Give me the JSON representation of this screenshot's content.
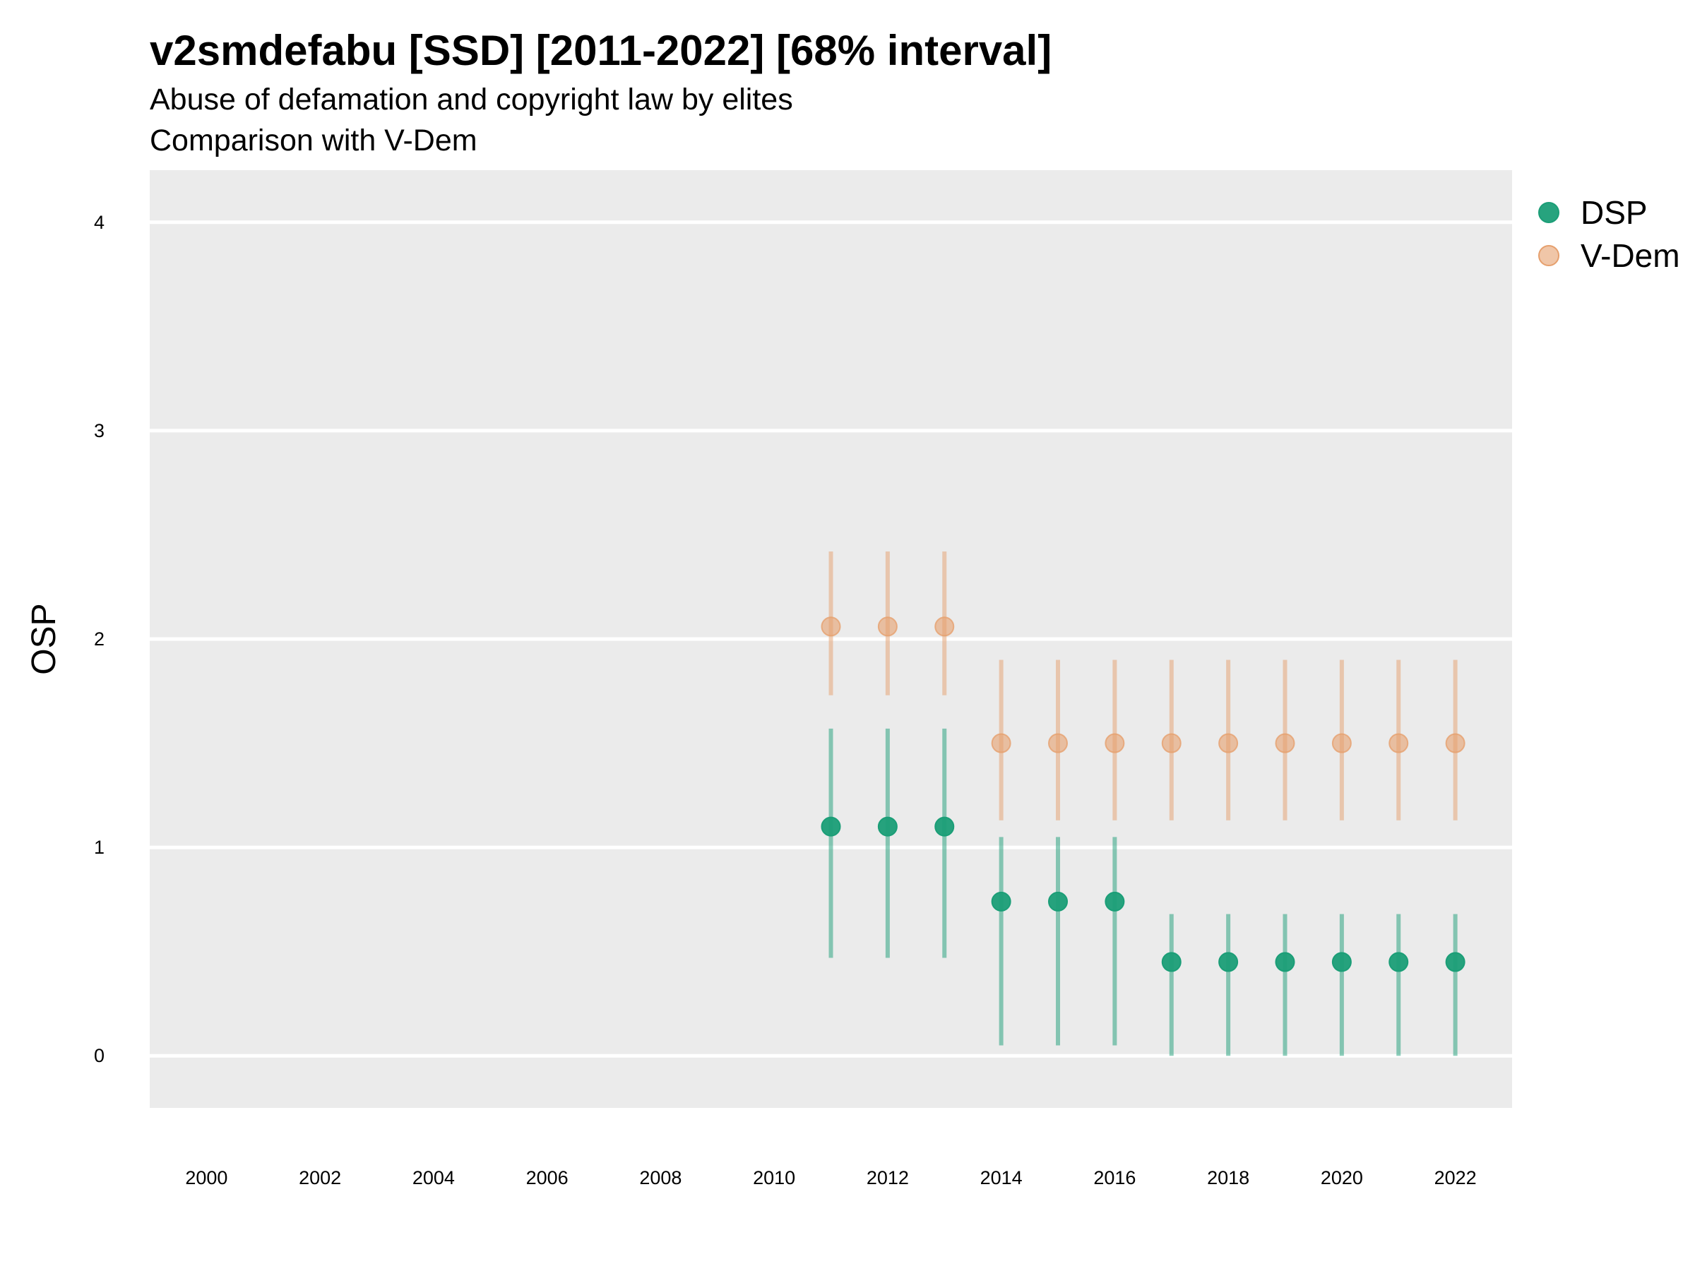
{
  "chart_data": {
    "type": "scatter",
    "title": "v2smdefabu [SSD] [2011-2022] [68% interval]",
    "subtitle_lines": [
      "Abuse of defamation and copyright law by elites",
      "Comparison with V-Dem"
    ],
    "xlabel": "",
    "ylabel": "OSP",
    "xlim": [
      1999.0,
      2023.0
    ],
    "ylim": [
      -0.25,
      4.25
    ],
    "x_ticks": [
      2000,
      2002,
      2004,
      2006,
      2008,
      2010,
      2012,
      2014,
      2016,
      2018,
      2020,
      2022
    ],
    "y_ticks": [
      0,
      1,
      2,
      3,
      4
    ],
    "grid": true,
    "legend_position": "right",
    "series": [
      {
        "name": "DSP",
        "color": "#1b9e77",
        "x": [
          2011,
          2012,
          2013,
          2014,
          2015,
          2016,
          2017,
          2018,
          2019,
          2020,
          2021,
          2022
        ],
        "y": [
          1.1,
          1.1,
          1.1,
          0.74,
          0.74,
          0.74,
          0.45,
          0.45,
          0.45,
          0.45,
          0.45,
          0.45
        ],
        "low": [
          0.47,
          0.47,
          0.47,
          0.05,
          0.05,
          0.05,
          0.0,
          0.0,
          0.0,
          0.0,
          0.0,
          0.0
        ],
        "high": [
          1.57,
          1.57,
          1.57,
          1.05,
          1.05,
          1.05,
          0.68,
          0.68,
          0.68,
          0.68,
          0.68,
          0.68
        ]
      },
      {
        "name": "V-Dem",
        "color": "#e6a06e",
        "x": [
          2011,
          2012,
          2013,
          2014,
          2015,
          2016,
          2017,
          2018,
          2019,
          2020,
          2021,
          2022
        ],
        "y": [
          2.06,
          2.06,
          2.06,
          1.5,
          1.5,
          1.5,
          1.5,
          1.5,
          1.5,
          1.5,
          1.5,
          1.5
        ],
        "low": [
          1.73,
          1.73,
          1.73,
          1.13,
          1.13,
          1.13,
          1.13,
          1.13,
          1.13,
          1.13,
          1.13,
          1.13
        ],
        "high": [
          2.42,
          2.42,
          2.42,
          1.9,
          1.9,
          1.9,
          1.9,
          1.9,
          1.9,
          1.9,
          1.9,
          1.9
        ]
      }
    ]
  }
}
